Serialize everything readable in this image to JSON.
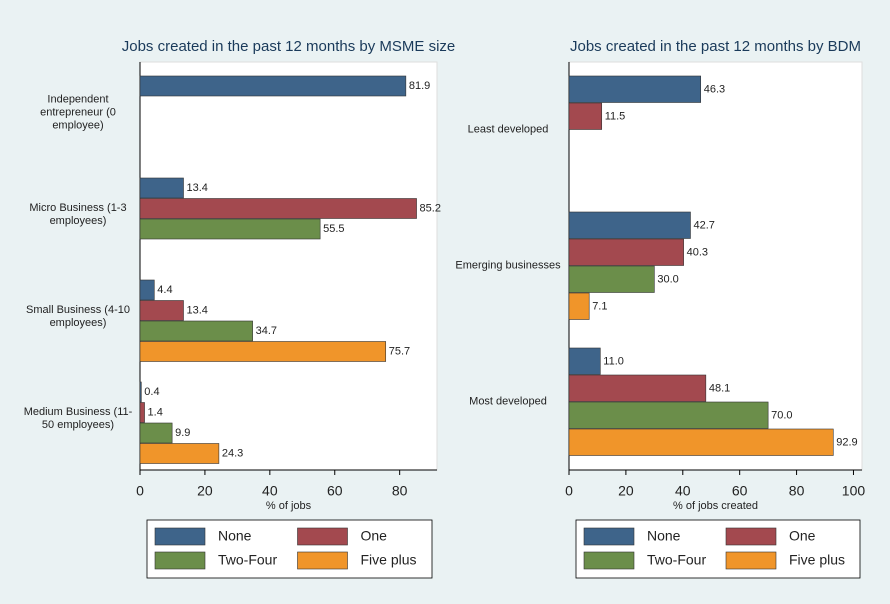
{
  "chart_data": [
    {
      "type": "hbar",
      "title": "Jobs created in the past 12 months by MSME size",
      "xlabel": "% of jobs",
      "categories": [
        "Independent entrepreneur (0 employee)",
        "Micro Business (1-3 employees)",
        "Small Business (4-10 employees)",
        "Medium Business (11-50 employees)"
      ],
      "series": [
        {
          "name": "None",
          "color": "#3e648a",
          "values": [
            81.9,
            13.4,
            4.4,
            0.4
          ],
          "value_labels": [
            "81.9",
            "13.4",
            "4.4",
            "0.4"
          ]
        },
        {
          "name": "One",
          "color": "#a3494f",
          "values": [
            null,
            85.2,
            13.4,
            1.4
          ],
          "value_labels": [
            null,
            "85.2",
            "13.4",
            "1.4"
          ]
        },
        {
          "name": "Two-Four",
          "color": "#6b8e4a",
          "values": [
            null,
            55.5,
            34.7,
            9.9
          ],
          "value_labels": [
            null,
            "55.5",
            "34.7",
            "9.9"
          ]
        },
        {
          "name": "Five plus",
          "color": "#f0952a",
          "values": [
            null,
            null,
            75.7,
            24.3
          ],
          "value_labels": [
            null,
            null,
            "75.7",
            "24.3"
          ]
        }
      ],
      "xlim": [
        0,
        91.5
      ],
      "xticks": [
        0,
        20,
        40,
        60,
        80
      ],
      "legend": "bottom"
    },
    {
      "type": "hbar",
      "title": "Jobs created in the past 12 months by BDM",
      "xlabel": "% of jobs created",
      "categories": [
        "Least developed",
        "Emerging businesses",
        "Most developed"
      ],
      "series": [
        {
          "name": "None",
          "color": "#3e648a",
          "values": [
            46.3,
            42.7,
            11.0
          ],
          "value_labels": [
            "46.3",
            "42.7",
            "11.0"
          ]
        },
        {
          "name": "One",
          "color": "#a3494f",
          "values": [
            11.5,
            40.3,
            48.1
          ],
          "value_labels": [
            "11.5",
            "40.3",
            "48.1"
          ]
        },
        {
          "name": "Two-Four",
          "color": "#6b8e4a",
          "values": [
            null,
            30.0,
            70.0
          ],
          "value_labels": [
            null,
            "30.0",
            "70.0"
          ]
        },
        {
          "name": "Five plus",
          "color": "#f0952a",
          "values": [
            null,
            7.1,
            92.9
          ],
          "value_labels": [
            null,
            "7.1",
            "92.9"
          ]
        }
      ],
      "xlim": [
        0,
        103
      ],
      "xticks": [
        0,
        20,
        40,
        60,
        80,
        100
      ],
      "legend": "bottom"
    }
  ]
}
